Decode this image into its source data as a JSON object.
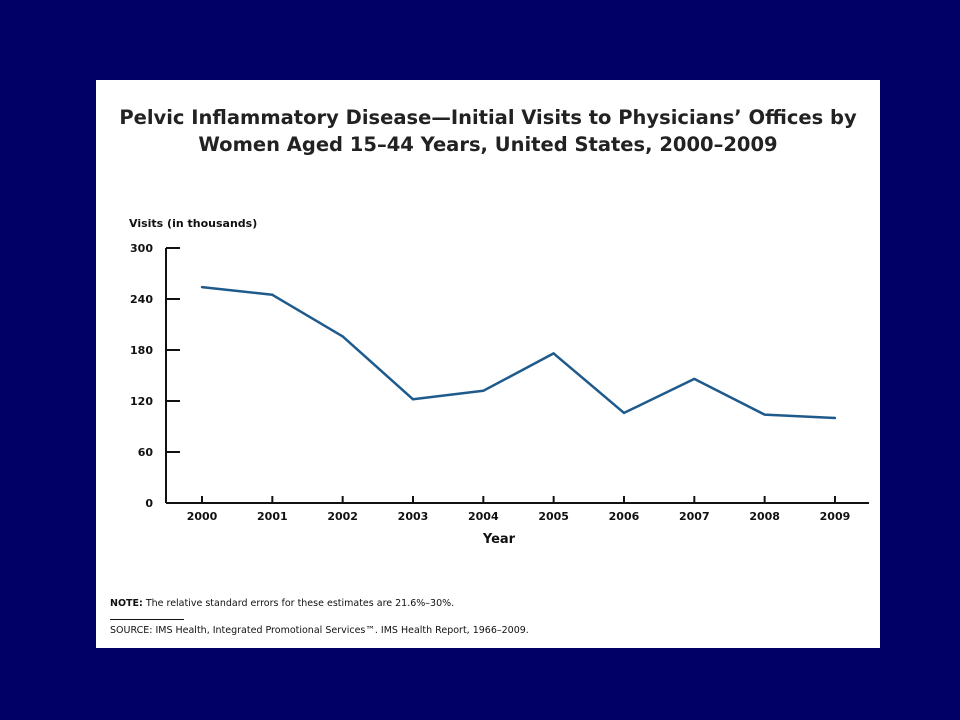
{
  "background_color": "#000066",
  "line_color": "#1f5a8c",
  "title_line1": "Pelvic Inflammatory Disease—Initial Visits to Physicians’ Offices by",
  "title_line2": "Women Aged 15–44 Years, United States, 2000–2009",
  "note_label": "NOTE:",
  "note_text": " The relative standard errors for these estimates are 21.6%–30%.",
  "source_text": "SOURCE: IMS Health, Integrated Promotional Services™. IMS Health Report, 1966–2009.",
  "chart_data": {
    "type": "line",
    "title": "Pelvic Inflammatory Disease—Initial Visits to Physicians’ Offices by Women Aged 15–44 Years, United States, 2000–2009",
    "xlabel": "Year",
    "ylabel": "Visits (in thousands)",
    "ylim": [
      0,
      300
    ],
    "yticks": [
      0,
      60,
      120,
      180,
      240,
      300
    ],
    "grid": false,
    "legend": "none",
    "x": [
      "2000",
      "2001",
      "2002",
      "2003",
      "2004",
      "2005",
      "2006",
      "2007",
      "2008",
      "2009"
    ],
    "series": [
      {
        "values": [
          254,
          245,
          196,
          122,
          132,
          176,
          106,
          146,
          104,
          100
        ]
      }
    ]
  }
}
